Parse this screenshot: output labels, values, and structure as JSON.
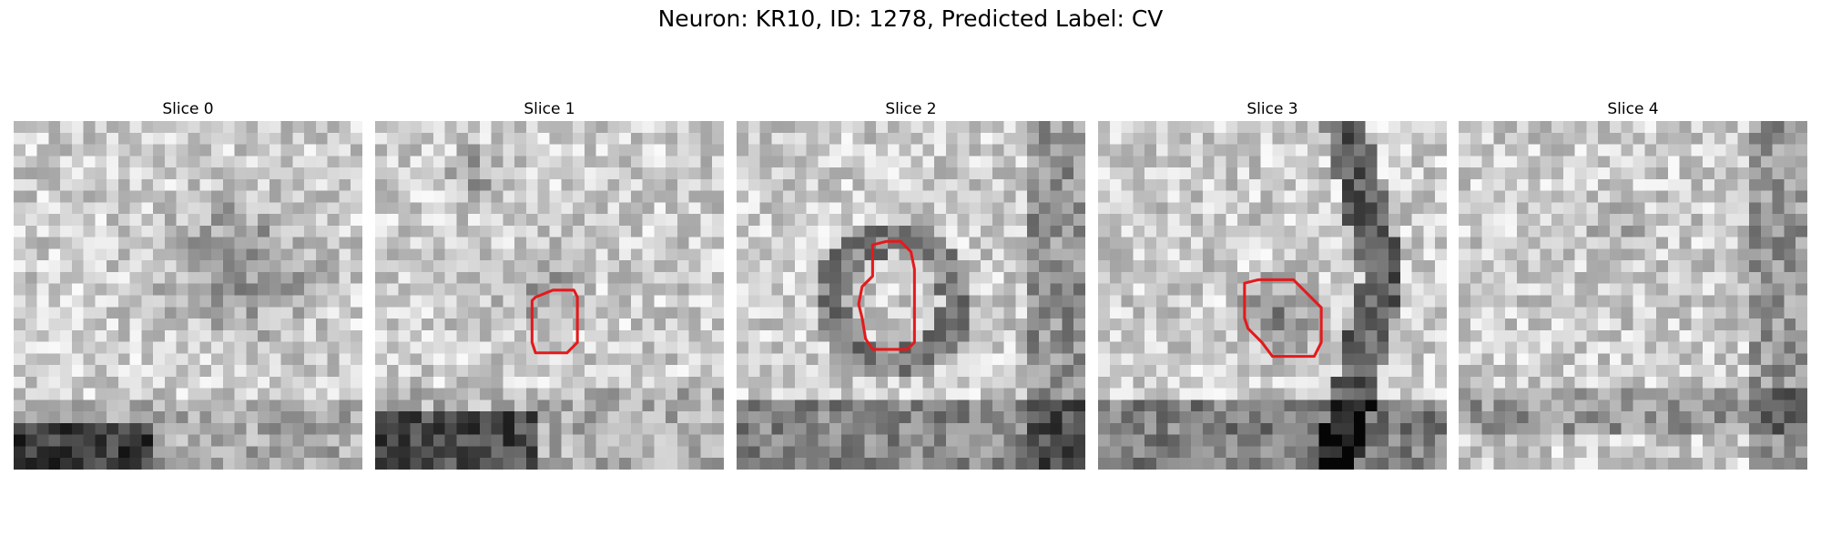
{
  "figure": {
    "suptitle": "Neuron: KR10, ID: 1278, Predicted Label: CV"
  },
  "panels": [
    {
      "title": "Slice 0",
      "seed": 11,
      "contour": []
    },
    {
      "title": "Slice 1",
      "seed": 23,
      "contour": [
        [
          0.46,
          0.5
        ],
        [
          0.51,
          0.48
        ],
        [
          0.57,
          0.48
        ],
        [
          0.58,
          0.5
        ],
        [
          0.58,
          0.63
        ],
        [
          0.55,
          0.66
        ],
        [
          0.46,
          0.66
        ],
        [
          0.45,
          0.63
        ],
        [
          0.45,
          0.51
        ]
      ]
    },
    {
      "title": "Slice 2",
      "seed": 37,
      "contour": [
        [
          0.39,
          0.35
        ],
        [
          0.43,
          0.34
        ],
        [
          0.47,
          0.34
        ],
        [
          0.5,
          0.37
        ],
        [
          0.51,
          0.42
        ],
        [
          0.51,
          0.63
        ],
        [
          0.49,
          0.65
        ],
        [
          0.39,
          0.65
        ],
        [
          0.37,
          0.62
        ],
        [
          0.36,
          0.56
        ],
        [
          0.35,
          0.52
        ],
        [
          0.36,
          0.47
        ],
        [
          0.39,
          0.44
        ]
      ]
    },
    {
      "title": "Slice 3",
      "seed": 51,
      "contour": [
        [
          0.42,
          0.46
        ],
        [
          0.46,
          0.45
        ],
        [
          0.56,
          0.45
        ],
        [
          0.6,
          0.49
        ],
        [
          0.64,
          0.53
        ],
        [
          0.64,
          0.63
        ],
        [
          0.62,
          0.67
        ],
        [
          0.5,
          0.67
        ],
        [
          0.47,
          0.63
        ],
        [
          0.43,
          0.59
        ],
        [
          0.42,
          0.56
        ]
      ]
    },
    {
      "title": "Slice 4",
      "seed": 67,
      "contour": []
    }
  ],
  "colors": {
    "contour": "#e31a1c"
  }
}
